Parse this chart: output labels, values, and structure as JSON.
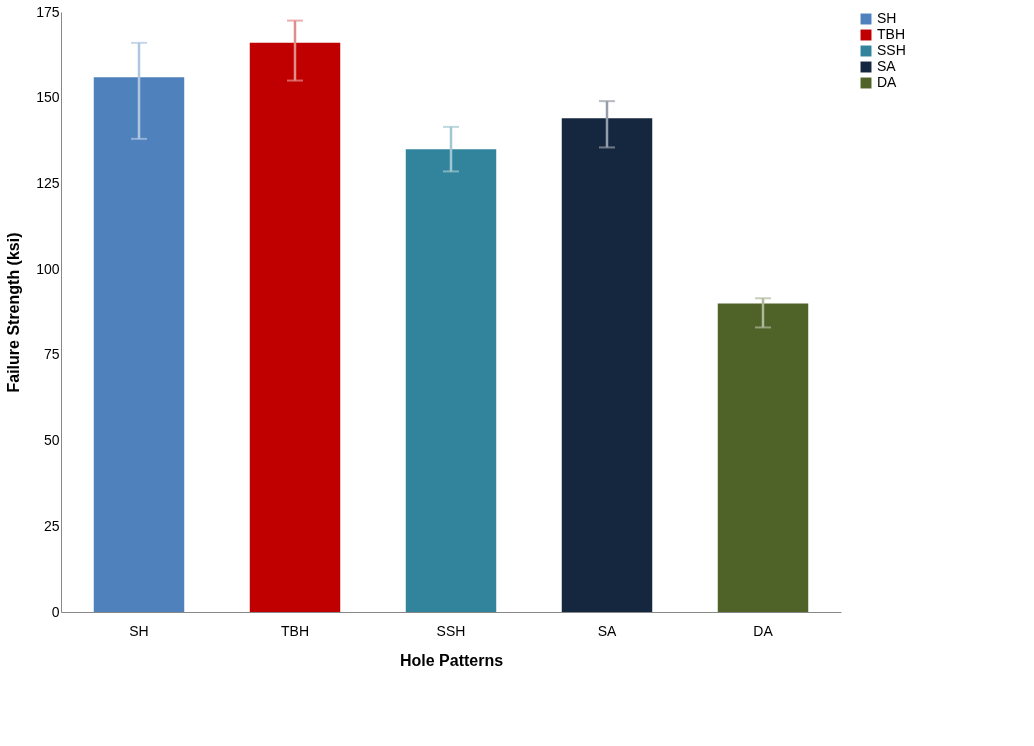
{
  "chart_data": {
    "type": "bar",
    "xlabel": "Hole Patterns",
    "ylabel": "Failure Strength (ksi)",
    "categories": [
      "SH",
      "TBH",
      "SSH",
      "SA",
      "DA"
    ],
    "series": [
      {
        "name": "SH",
        "color": "#4f81bd",
        "values": [
          156,
          null,
          null,
          null,
          null
        ],
        "errors": [
          [
            138,
            166
          ],
          null,
          null,
          null,
          null
        ]
      },
      {
        "name": "TBH",
        "color": "#c00000",
        "values": [
          null,
          166,
          null,
          null,
          null
        ],
        "errors": [
          null,
          [
            155,
            172.5
          ],
          null,
          null,
          null
        ]
      },
      {
        "name": "SSH",
        "color": "#31849b",
        "values": [
          null,
          null,
          135,
          null,
          null
        ],
        "errors": [
          null,
          null,
          [
            128.5,
            141.5
          ],
          null,
          null
        ]
      },
      {
        "name": "SA",
        "color": "#14273f",
        "values": [
          null,
          null,
          null,
          144,
          null
        ],
        "errors": [
          null,
          null,
          null,
          [
            135.5,
            149
          ],
          null
        ]
      },
      {
        "name": "DA",
        "color": "#4f6228",
        "values": [
          null,
          null,
          null,
          null,
          90
        ],
        "errors": [
          null,
          null,
          null,
          null,
          [
            83,
            91.5
          ]
        ]
      }
    ],
    "ylim": [
      0,
      175
    ],
    "yticks": [
      0,
      25,
      50,
      75,
      100,
      125,
      150,
      175
    ],
    "grid": false,
    "legend": "right"
  }
}
